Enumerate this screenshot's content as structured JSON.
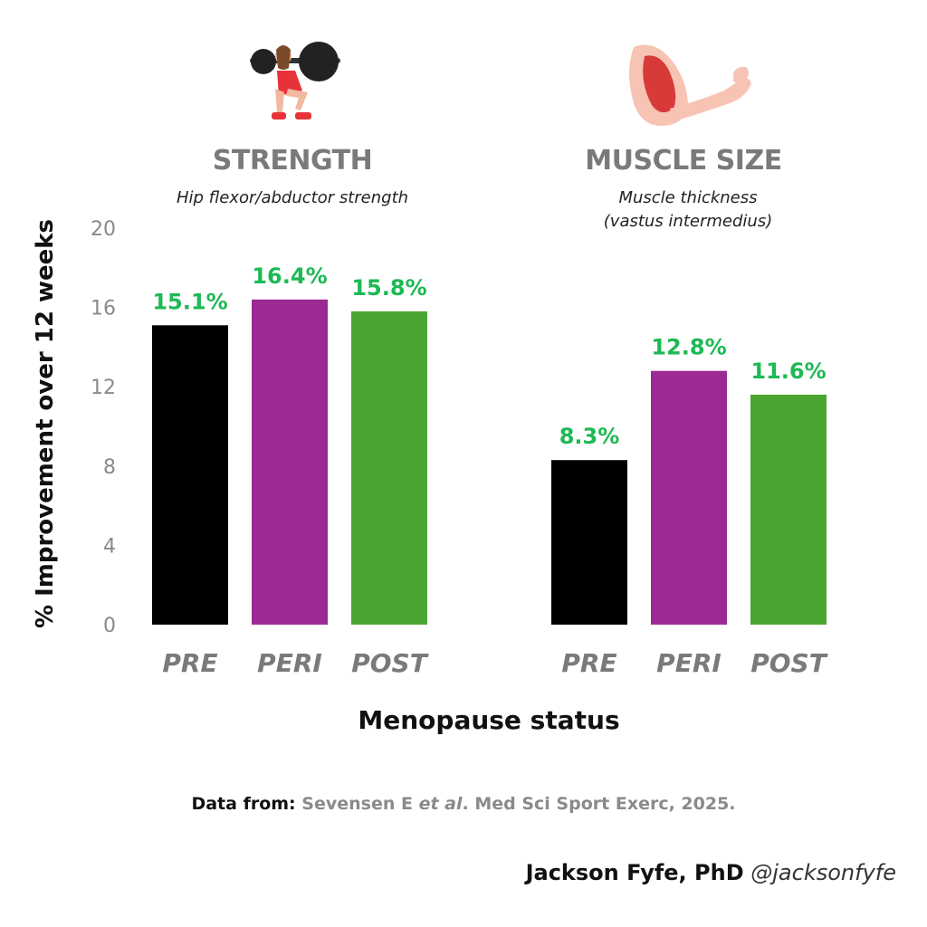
{
  "chart_data": {
    "type": "bar",
    "ylabel": "% Improvement over 12 weeks",
    "xlabel": "Menopause status",
    "ylim": [
      0,
      20
    ],
    "yticks": [
      0,
      4,
      8,
      12,
      16,
      20
    ],
    "categories": [
      "PRE",
      "PERI",
      "POST"
    ],
    "colors": [
      "#000000",
      "#9b2a93",
      "#4aa630"
    ],
    "value_label_color": "#1db954",
    "panels": [
      {
        "title": "STRENGTH",
        "subtitle": [
          "Hip flexor/abductor strength"
        ],
        "values": [
          15.1,
          16.4,
          15.8
        ],
        "labels": [
          "15.1%",
          "16.4%",
          "15.8%"
        ],
        "icon": "barbell-squat-icon"
      },
      {
        "title": "MUSCLE SIZE",
        "subtitle": [
          "Muscle thickness",
          "(vastus intermedius)"
        ],
        "values": [
          8.3,
          12.8,
          11.6
        ],
        "labels": [
          "8.3%",
          "12.8%",
          "11.6%"
        ],
        "icon": "flexed-arm-muscle-icon"
      }
    ]
  },
  "source": {
    "prefix": "Data from:",
    "authors": "Sevensen E",
    "etal": "et al",
    "journal": ". Med Sci Sport Exerc, 2025."
  },
  "credit": {
    "name": "Jackson Fyfe, PhD",
    "handle": "@jacksonfyfe"
  }
}
